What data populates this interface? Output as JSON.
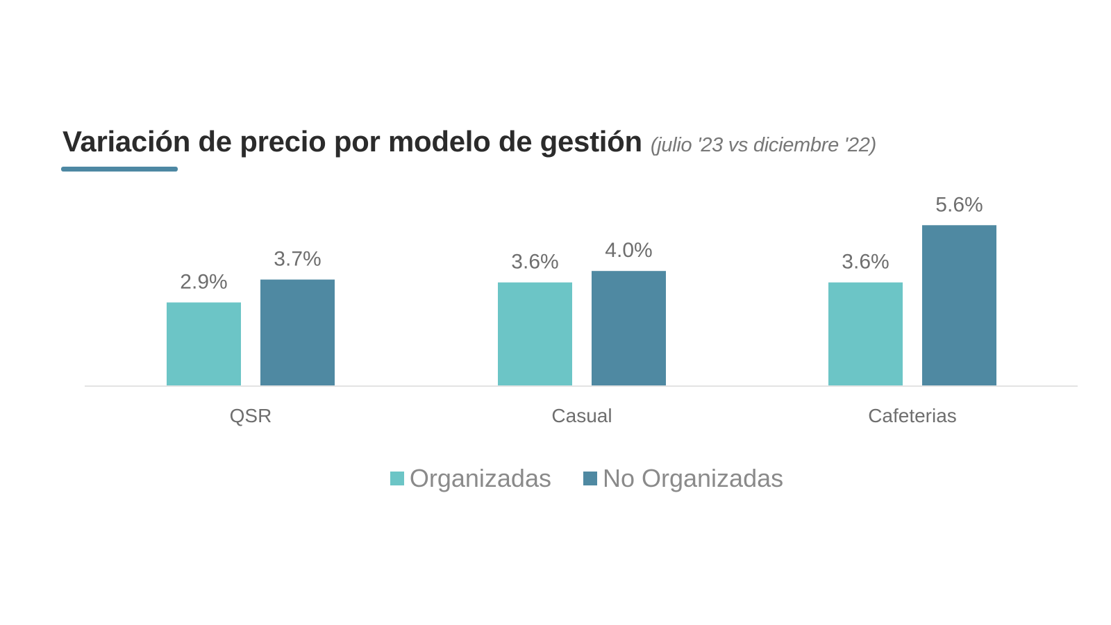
{
  "chart_data": {
    "type": "bar",
    "title": "Variación de precio por modelo de gestión",
    "subtitle": "(julio '23 vs diciembre '22)",
    "categories": [
      "QSR",
      "Casual",
      "Cafeterias"
    ],
    "series": [
      {
        "name": "Organizadas",
        "color": "#6cc5c6",
        "values": [
          2.9,
          3.6,
          3.6
        ],
        "labels": [
          "2.9%",
          "3.6%",
          "3.6%"
        ]
      },
      {
        "name": "No Organizadas",
        "color": "#4f89a2",
        "values": [
          3.7,
          4.0,
          5.6
        ],
        "labels": [
          "3.7%",
          "4.0%",
          "5.6%"
        ]
      }
    ],
    "ylim": [
      0,
      6
    ],
    "grid": false,
    "legend": "bottom",
    "accent": "#4d88a3"
  }
}
